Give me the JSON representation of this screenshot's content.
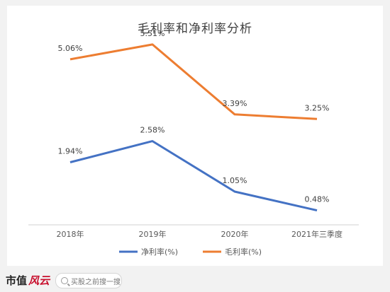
{
  "chart_data": {
    "type": "line",
    "title": "毛利率和净利率分析",
    "categories": [
      "2018年",
      "2019年",
      "2020年",
      "2021年三季度"
    ],
    "series": [
      {
        "name": "净利率(%)",
        "color": "#4472c4",
        "values": [
          1.94,
          2.58,
          1.05,
          0.48
        ],
        "labels": [
          "1.94%",
          "2.58%",
          "1.05%",
          "0.48%"
        ]
      },
      {
        "name": "毛利率(%)",
        "color": "#ed7d31",
        "values": [
          5.06,
          5.51,
          3.39,
          3.25
        ],
        "labels": [
          "5.06%",
          "5.51%",
          "3.39%",
          "3.25%"
        ]
      }
    ],
    "ylim": [
      0,
      6
    ],
    "grid": false,
    "legend": "bottom"
  },
  "footer": {
    "brand": "市值",
    "brand_mark": "风云",
    "search_placeholder": "买股之前搜一搜"
  }
}
